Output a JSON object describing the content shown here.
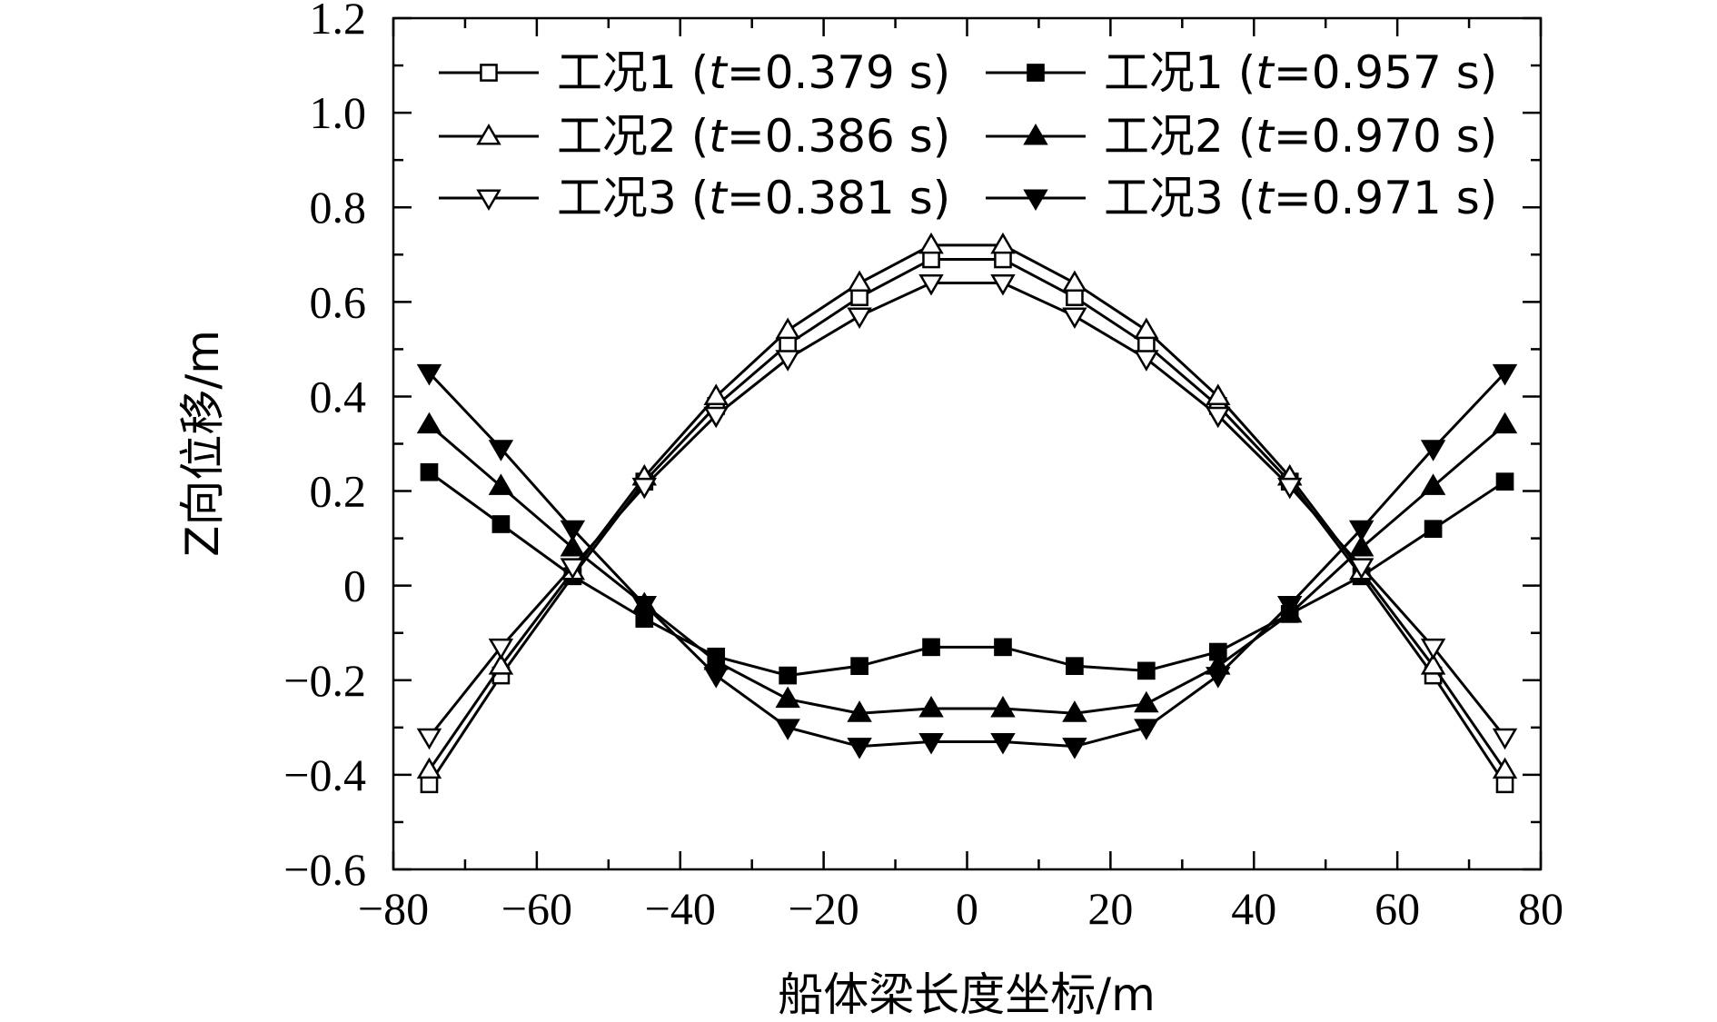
{
  "chart_data": {
    "type": "line",
    "title": "",
    "xlabel": "船体梁长度坐标/m",
    "ylabel": "Z向位移/m",
    "xlim": [
      -80,
      80
    ],
    "ylim": [
      -0.6,
      1.2
    ],
    "x_ticks": [
      "−80",
      "−60",
      "−40",
      "−20",
      "0",
      "20",
      "40",
      "60",
      "80"
    ],
    "y_ticks": [
      "−0.6",
      "−0.4",
      "−0.2",
      "0",
      "0.2",
      "0.4",
      "0.6",
      "0.8",
      "1.0",
      "1.2"
    ],
    "legend_position": "top",
    "x": [
      -75,
      -65,
      -55,
      -45,
      -35,
      -25,
      -15,
      -5,
      5,
      15,
      25,
      35,
      45,
      55,
      65,
      75
    ],
    "series": [
      {
        "name": "工况1 (t=0.379 s)",
        "case": "工况1 (",
        "time": "t",
        "rest": "=0.379 s)",
        "marker": "square",
        "fill": "open",
        "values": [
          -0.42,
          -0.19,
          0.02,
          0.22,
          0.38,
          0.51,
          0.61,
          0.69,
          0.69,
          0.61,
          0.51,
          0.38,
          0.22,
          0.02,
          -0.19,
          -0.42
        ]
      },
      {
        "name": "工况1 (t=0.957 s)",
        "case": "工况1 (",
        "time": "t",
        "rest": "=0.957 s)",
        "marker": "square",
        "fill": "solid",
        "values": [
          0.24,
          0.13,
          0.02,
          -0.07,
          -0.15,
          -0.19,
          -0.17,
          -0.13,
          -0.13,
          -0.17,
          -0.18,
          -0.14,
          -0.06,
          0.02,
          0.12,
          0.22
        ]
      },
      {
        "name": "工况2 (t=0.386 s)",
        "case": "工况2 (",
        "time": "t",
        "rest": "=0.386 s)",
        "marker": "triangle-up",
        "fill": "open",
        "values": [
          -0.39,
          -0.17,
          0.03,
          0.23,
          0.4,
          0.54,
          0.64,
          0.72,
          0.72,
          0.64,
          0.54,
          0.4,
          0.23,
          0.03,
          -0.17,
          -0.39
        ]
      },
      {
        "name": "工况2 (t=0.970 s)",
        "case": "工况2 (",
        "time": "t",
        "rest": "=0.970 s)",
        "marker": "triangle-up",
        "fill": "solid",
        "values": [
          0.34,
          0.21,
          0.08,
          -0.04,
          -0.16,
          -0.24,
          -0.27,
          -0.26,
          -0.26,
          -0.27,
          -0.25,
          -0.17,
          -0.06,
          0.08,
          0.21,
          0.34
        ]
      },
      {
        "name": "工况3 (t=0.381 s)",
        "case": "工况3 (",
        "time": "t",
        "rest": "=0.381 s)",
        "marker": "triangle-down",
        "fill": "open",
        "values": [
          -0.32,
          -0.13,
          0.04,
          0.21,
          0.36,
          0.48,
          0.57,
          0.64,
          0.64,
          0.57,
          0.48,
          0.36,
          0.21,
          0.04,
          -0.13,
          -0.32
        ]
      },
      {
        "name": "工况3 (t=0.971 s)",
        "case": "工况3 (",
        "time": "t",
        "rest": "=0.971 s)",
        "marker": "triangle-down",
        "fill": "solid",
        "values": [
          0.45,
          0.29,
          0.12,
          -0.04,
          -0.19,
          -0.3,
          -0.34,
          -0.33,
          -0.33,
          -0.34,
          -0.3,
          -0.19,
          -0.04,
          0.12,
          0.29,
          0.45
        ]
      }
    ]
  }
}
